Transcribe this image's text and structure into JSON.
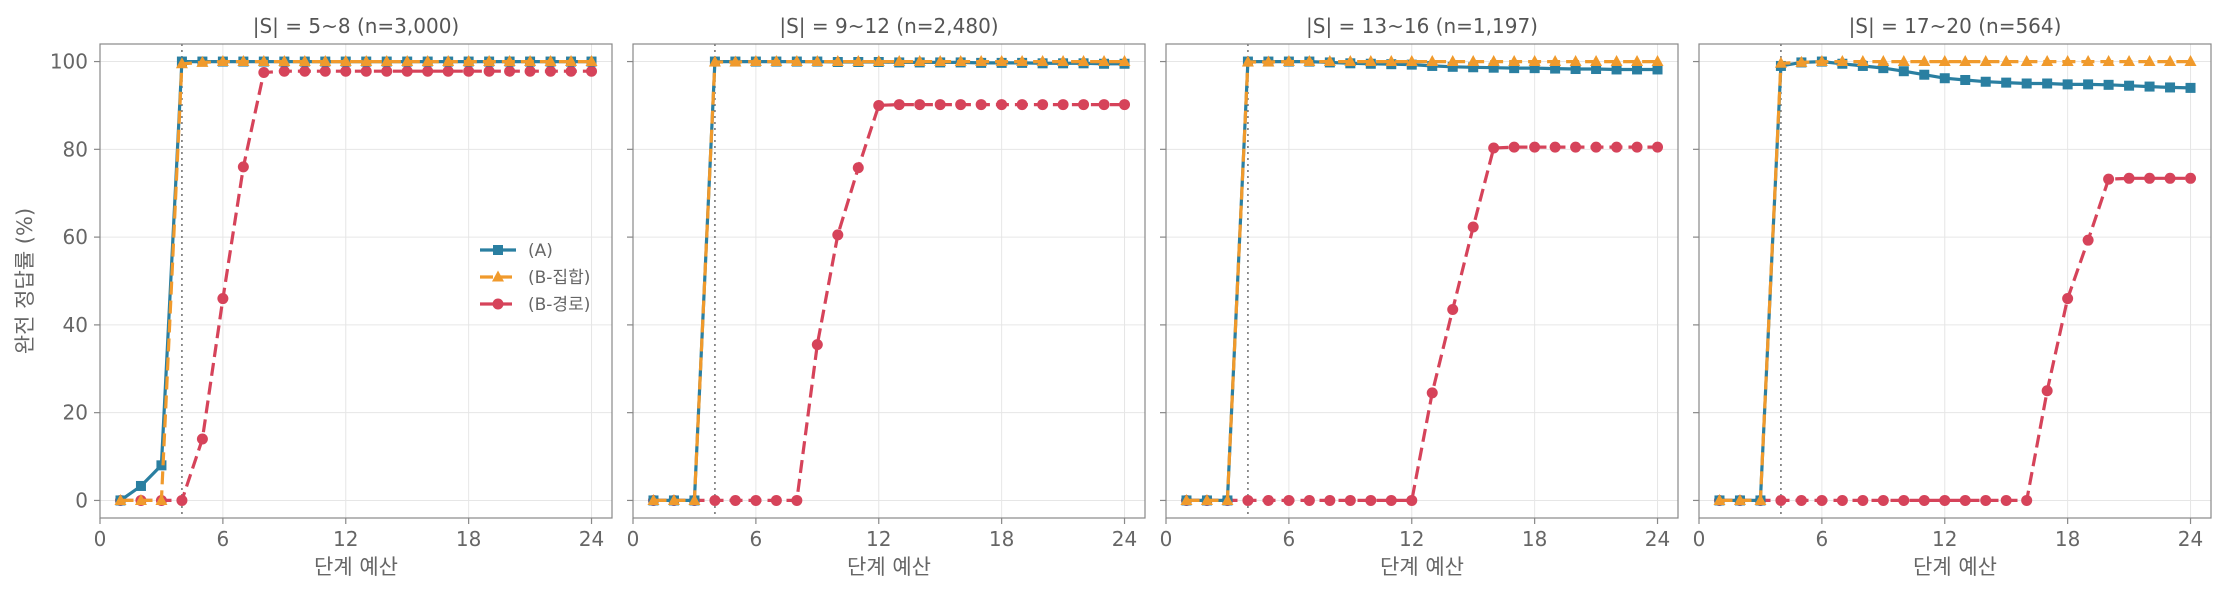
{
  "figure": {
    "ylabel": "완전 정답률 (%)",
    "xlabel": "단계 예산",
    "x_ticks": [
      0,
      6,
      12,
      18,
      24
    ],
    "y_ticks": [
      0,
      20,
      40,
      60,
      80,
      100
    ],
    "xlim": [
      0,
      25
    ],
    "ylim": [
      -4,
      104
    ],
    "reference_x": 4,
    "colors": {
      "A": "#2a7fa1",
      "B_set": "#f09a2c",
      "B_path": "#d6435a",
      "reference": "#777777",
      "grid": "#e6e6e6",
      "frame": "#888888"
    },
    "legend": {
      "placement": "center-right",
      "panel_index": 0,
      "entries": [
        "(A)",
        "(B-집합)",
        "(B-경로)"
      ]
    }
  },
  "chart_data": [
    {
      "type": "line",
      "title": "|S| = 5~8    (n=3,000)",
      "x": [
        1,
        2,
        3,
        4,
        5,
        6,
        7,
        8,
        9,
        10,
        11,
        12,
        13,
        14,
        15,
        16,
        17,
        18,
        19,
        20,
        21,
        22,
        23,
        24
      ],
      "series": [
        {
          "name": "(A)",
          "values": [
            0,
            3.3,
            8,
            100,
            100,
            100,
            100,
            100,
            100,
            100,
            100,
            100,
            100,
            100,
            100,
            100,
            100,
            100,
            100,
            100,
            100,
            100,
            100,
            100
          ]
        },
        {
          "name": "(B-집합)",
          "values": [
            0,
            0,
            0,
            99.5,
            99.8,
            100,
            100,
            100,
            100,
            100,
            100,
            100,
            100,
            100,
            100,
            100,
            100,
            100,
            100,
            100,
            100,
            100,
            100,
            100
          ]
        },
        {
          "name": "(B-경로)",
          "values": [
            0,
            0,
            0,
            0,
            14,
            46,
            76,
            97.5,
            97.8,
            97.8,
            97.8,
            97.8,
            97.8,
            97.8,
            97.8,
            97.8,
            97.8,
            97.8,
            97.8,
            97.8,
            97.8,
            97.8,
            97.8,
            97.8
          ]
        }
      ]
    },
    {
      "type": "line",
      "title": "|S| = 9~12    (n=2,480)",
      "x": [
        1,
        2,
        3,
        4,
        5,
        6,
        7,
        8,
        9,
        10,
        11,
        12,
        13,
        14,
        15,
        16,
        17,
        18,
        19,
        20,
        21,
        22,
        23,
        24
      ],
      "series": [
        {
          "name": "(A)",
          "values": [
            0,
            0,
            0,
            100,
            100,
            100,
            100,
            100,
            100,
            99.9,
            99.9,
            99.9,
            99.8,
            99.8,
            99.8,
            99.8,
            99.7,
            99.7,
            99.7,
            99.6,
            99.6,
            99.6,
            99.5,
            99.5
          ]
        },
        {
          "name": "(B-집합)",
          "values": [
            0,
            0,
            0,
            99.9,
            99.9,
            100,
            100,
            100,
            100,
            100,
            100,
            100,
            100,
            100,
            100,
            100,
            100,
            100,
            100,
            100,
            100,
            100,
            100,
            100
          ]
        },
        {
          "name": "(B-경로)",
          "values": [
            0,
            0,
            0,
            0,
            0,
            0,
            0,
            0,
            35.5,
            60.5,
            75.8,
            90,
            90.2,
            90.2,
            90.2,
            90.2,
            90.2,
            90.2,
            90.2,
            90.2,
            90.2,
            90.2,
            90.2,
            90.2
          ]
        }
      ]
    },
    {
      "type": "line",
      "title": "|S| = 13~16    (n=1,197)",
      "x": [
        1,
        2,
        3,
        4,
        5,
        6,
        7,
        8,
        9,
        10,
        11,
        12,
        13,
        14,
        15,
        16,
        17,
        18,
        19,
        20,
        21,
        22,
        23,
        24
      ],
      "series": [
        {
          "name": "(A)",
          "values": [
            0,
            0,
            0,
            100,
            100,
            100,
            100,
            99.8,
            99.6,
            99.5,
            99.4,
            99.3,
            99,
            98.8,
            98.7,
            98.6,
            98.5,
            98.5,
            98.4,
            98.3,
            98.3,
            98.2,
            98.2,
            98.2
          ]
        },
        {
          "name": "(B-집합)",
          "values": [
            0,
            0,
            0,
            99.9,
            99.9,
            100,
            100,
            100,
            100,
            100,
            100,
            100,
            100,
            100,
            100,
            100,
            100,
            100,
            100,
            100,
            100,
            100,
            100,
            100
          ]
        },
        {
          "name": "(B-경로)",
          "values": [
            0,
            0,
            0,
            0,
            0,
            0,
            0,
            0,
            0,
            0,
            0,
            0,
            24.5,
            43.5,
            62.3,
            80.3,
            80.5,
            80.5,
            80.5,
            80.5,
            80.5,
            80.5,
            80.5,
            80.5
          ]
        }
      ]
    },
    {
      "type": "line",
      "title": "|S| = 17~20    (n=564)",
      "x": [
        1,
        2,
        3,
        4,
        5,
        6,
        7,
        8,
        9,
        10,
        11,
        12,
        13,
        14,
        15,
        16,
        17,
        18,
        19,
        20,
        21,
        22,
        23,
        24
      ],
      "series": [
        {
          "name": "(A)",
          "values": [
            0,
            0,
            0,
            99,
            99.8,
            100,
            99.5,
            99,
            98.5,
            97.8,
            97,
            96.2,
            95.8,
            95.4,
            95.2,
            95,
            95,
            94.8,
            94.8,
            94.7,
            94.5,
            94.3,
            94.1,
            94
          ]
        },
        {
          "name": "(B-집합)",
          "values": [
            0,
            0,
            0,
            99.6,
            99.8,
            100,
            100,
            100,
            100,
            100,
            100,
            100,
            100,
            100,
            100,
            100,
            100,
            100,
            100,
            100,
            100,
            100,
            100,
            100
          ]
        },
        {
          "name": "(B-경로)",
          "values": [
            0,
            0,
            0,
            0,
            0,
            0,
            0,
            0,
            0,
            0,
            0,
            0,
            0,
            0,
            0,
            0,
            25,
            46,
            59.3,
            73.2,
            73.4,
            73.4,
            73.4,
            73.4
          ]
        }
      ]
    }
  ]
}
